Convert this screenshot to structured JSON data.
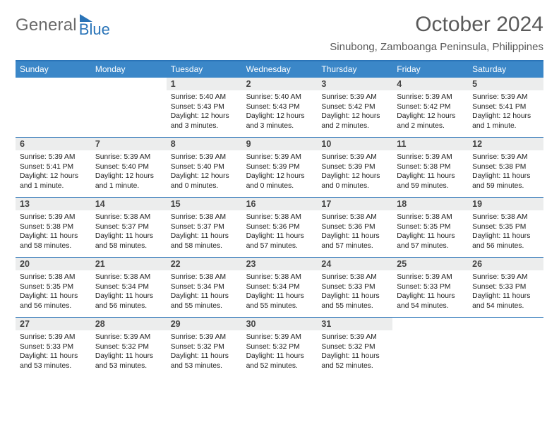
{
  "brand": {
    "word1": "General",
    "word2": "Blue"
  },
  "title": "October 2024",
  "location": "Sinubong, Zamboanga Peninsula, Philippines",
  "colors": {
    "accent": "#2a74b8",
    "header_bg": "#3b87c8",
    "daynum_bg": "#eceded",
    "text": "#222222",
    "muted": "#5a5a5a"
  },
  "day_headers": [
    "Sunday",
    "Monday",
    "Tuesday",
    "Wednesday",
    "Thursday",
    "Friday",
    "Saturday"
  ],
  "weeks": [
    [
      {
        "n": "",
        "sunrise": "",
        "sunset": "",
        "daylight": ""
      },
      {
        "n": "",
        "sunrise": "",
        "sunset": "",
        "daylight": ""
      },
      {
        "n": "1",
        "sunrise": "Sunrise: 5:40 AM",
        "sunset": "Sunset: 5:43 PM",
        "daylight": "Daylight: 12 hours and 3 minutes."
      },
      {
        "n": "2",
        "sunrise": "Sunrise: 5:40 AM",
        "sunset": "Sunset: 5:43 PM",
        "daylight": "Daylight: 12 hours and 3 minutes."
      },
      {
        "n": "3",
        "sunrise": "Sunrise: 5:39 AM",
        "sunset": "Sunset: 5:42 PM",
        "daylight": "Daylight: 12 hours and 2 minutes."
      },
      {
        "n": "4",
        "sunrise": "Sunrise: 5:39 AM",
        "sunset": "Sunset: 5:42 PM",
        "daylight": "Daylight: 12 hours and 2 minutes."
      },
      {
        "n": "5",
        "sunrise": "Sunrise: 5:39 AM",
        "sunset": "Sunset: 5:41 PM",
        "daylight": "Daylight: 12 hours and 1 minute."
      }
    ],
    [
      {
        "n": "6",
        "sunrise": "Sunrise: 5:39 AM",
        "sunset": "Sunset: 5:41 PM",
        "daylight": "Daylight: 12 hours and 1 minute."
      },
      {
        "n": "7",
        "sunrise": "Sunrise: 5:39 AM",
        "sunset": "Sunset: 5:40 PM",
        "daylight": "Daylight: 12 hours and 1 minute."
      },
      {
        "n": "8",
        "sunrise": "Sunrise: 5:39 AM",
        "sunset": "Sunset: 5:40 PM",
        "daylight": "Daylight: 12 hours and 0 minutes."
      },
      {
        "n": "9",
        "sunrise": "Sunrise: 5:39 AM",
        "sunset": "Sunset: 5:39 PM",
        "daylight": "Daylight: 12 hours and 0 minutes."
      },
      {
        "n": "10",
        "sunrise": "Sunrise: 5:39 AM",
        "sunset": "Sunset: 5:39 PM",
        "daylight": "Daylight: 12 hours and 0 minutes."
      },
      {
        "n": "11",
        "sunrise": "Sunrise: 5:39 AM",
        "sunset": "Sunset: 5:38 PM",
        "daylight": "Daylight: 11 hours and 59 minutes."
      },
      {
        "n": "12",
        "sunrise": "Sunrise: 5:39 AM",
        "sunset": "Sunset: 5:38 PM",
        "daylight": "Daylight: 11 hours and 59 minutes."
      }
    ],
    [
      {
        "n": "13",
        "sunrise": "Sunrise: 5:39 AM",
        "sunset": "Sunset: 5:38 PM",
        "daylight": "Daylight: 11 hours and 58 minutes."
      },
      {
        "n": "14",
        "sunrise": "Sunrise: 5:38 AM",
        "sunset": "Sunset: 5:37 PM",
        "daylight": "Daylight: 11 hours and 58 minutes."
      },
      {
        "n": "15",
        "sunrise": "Sunrise: 5:38 AM",
        "sunset": "Sunset: 5:37 PM",
        "daylight": "Daylight: 11 hours and 58 minutes."
      },
      {
        "n": "16",
        "sunrise": "Sunrise: 5:38 AM",
        "sunset": "Sunset: 5:36 PM",
        "daylight": "Daylight: 11 hours and 57 minutes."
      },
      {
        "n": "17",
        "sunrise": "Sunrise: 5:38 AM",
        "sunset": "Sunset: 5:36 PM",
        "daylight": "Daylight: 11 hours and 57 minutes."
      },
      {
        "n": "18",
        "sunrise": "Sunrise: 5:38 AM",
        "sunset": "Sunset: 5:35 PM",
        "daylight": "Daylight: 11 hours and 57 minutes."
      },
      {
        "n": "19",
        "sunrise": "Sunrise: 5:38 AM",
        "sunset": "Sunset: 5:35 PM",
        "daylight": "Daylight: 11 hours and 56 minutes."
      }
    ],
    [
      {
        "n": "20",
        "sunrise": "Sunrise: 5:38 AM",
        "sunset": "Sunset: 5:35 PM",
        "daylight": "Daylight: 11 hours and 56 minutes."
      },
      {
        "n": "21",
        "sunrise": "Sunrise: 5:38 AM",
        "sunset": "Sunset: 5:34 PM",
        "daylight": "Daylight: 11 hours and 56 minutes."
      },
      {
        "n": "22",
        "sunrise": "Sunrise: 5:38 AM",
        "sunset": "Sunset: 5:34 PM",
        "daylight": "Daylight: 11 hours and 55 minutes."
      },
      {
        "n": "23",
        "sunrise": "Sunrise: 5:38 AM",
        "sunset": "Sunset: 5:34 PM",
        "daylight": "Daylight: 11 hours and 55 minutes."
      },
      {
        "n": "24",
        "sunrise": "Sunrise: 5:38 AM",
        "sunset": "Sunset: 5:33 PM",
        "daylight": "Daylight: 11 hours and 55 minutes."
      },
      {
        "n": "25",
        "sunrise": "Sunrise: 5:39 AM",
        "sunset": "Sunset: 5:33 PM",
        "daylight": "Daylight: 11 hours and 54 minutes."
      },
      {
        "n": "26",
        "sunrise": "Sunrise: 5:39 AM",
        "sunset": "Sunset: 5:33 PM",
        "daylight": "Daylight: 11 hours and 54 minutes."
      }
    ],
    [
      {
        "n": "27",
        "sunrise": "Sunrise: 5:39 AM",
        "sunset": "Sunset: 5:33 PM",
        "daylight": "Daylight: 11 hours and 53 minutes."
      },
      {
        "n": "28",
        "sunrise": "Sunrise: 5:39 AM",
        "sunset": "Sunset: 5:32 PM",
        "daylight": "Daylight: 11 hours and 53 minutes."
      },
      {
        "n": "29",
        "sunrise": "Sunrise: 5:39 AM",
        "sunset": "Sunset: 5:32 PM",
        "daylight": "Daylight: 11 hours and 53 minutes."
      },
      {
        "n": "30",
        "sunrise": "Sunrise: 5:39 AM",
        "sunset": "Sunset: 5:32 PM",
        "daylight": "Daylight: 11 hours and 52 minutes."
      },
      {
        "n": "31",
        "sunrise": "Sunrise: 5:39 AM",
        "sunset": "Sunset: 5:32 PM",
        "daylight": "Daylight: 11 hours and 52 minutes."
      },
      {
        "n": "",
        "sunrise": "",
        "sunset": "",
        "daylight": ""
      },
      {
        "n": "",
        "sunrise": "",
        "sunset": "",
        "daylight": ""
      }
    ]
  ]
}
